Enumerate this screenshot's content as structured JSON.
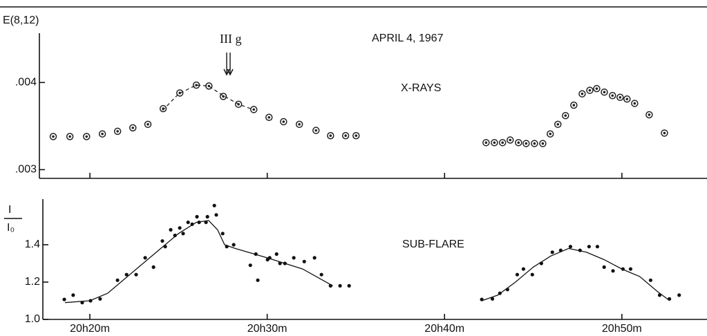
{
  "chart_data": [
    {
      "type": "scatter",
      "ylabel": "E(8,12)",
      "title": "APRIL 4, 1967",
      "label": "X-RAYS",
      "marker_note": "III g",
      "xlim": [
        17.15,
        54.8
      ],
      "ylim": [
        0.0029,
        0.00455
      ],
      "yticks": [
        {
          "value": 0.004,
          "label": ".004"
        },
        {
          "value": 0.003,
          "label": ".003"
        }
      ],
      "series": [
        {
          "marker": "ring",
          "color": "#222",
          "x": [
            17.93,
            18.87,
            19.81,
            20.7,
            21.56,
            22.42,
            23.27,
            24.13,
            25.07,
            26.0,
            26.71,
            27.52,
            28.38,
            29.24,
            30.1,
            30.92,
            31.81,
            32.75,
            33.57,
            34.42,
            35.01,
            42.34,
            42.81,
            43.27,
            43.7,
            44.17,
            44.6,
            45.07,
            45.54,
            45.96,
            46.39,
            46.82,
            47.29,
            47.76,
            48.19,
            48.58,
            49.01,
            49.47,
            49.9,
            50.29,
            50.72,
            51.54,
            52.4
          ],
          "values": [
            0.00338,
            0.00338,
            0.00338,
            0.00341,
            0.00344,
            0.00348,
            0.00352,
            0.0037,
            0.00388,
            0.00397,
            0.00396,
            0.00384,
            0.00375,
            0.00369,
            0.0036,
            0.00355,
            0.00352,
            0.00345,
            0.00339,
            0.00339,
            0.00339,
            0.00331,
            0.00331,
            0.00331,
            0.00334,
            0.00331,
            0.0033,
            0.0033,
            0.0033,
            0.00341,
            0.00352,
            0.00362,
            0.00374,
            0.00387,
            0.00391,
            0.00393,
            0.00389,
            0.00385,
            0.00383,
            0.00381,
            0.00376,
            0.00363,
            0.00342
          ]
        },
        {
          "type": "line",
          "style": "dashed",
          "color": "#222",
          "x": [
            24.1,
            25.0,
            26.0,
            26.7,
            27.5,
            28.4,
            29.2
          ],
          "values": [
            0.00368,
            0.00387,
            0.00397,
            0.00396,
            0.00385,
            0.00375,
            0.00369
          ]
        }
      ]
    },
    {
      "type": "scatter",
      "ylabel": "I",
      "ylabel_sub": "I₀",
      "label": "SUB-FLARE",
      "xlim": [
        17.35,
        54.8
      ],
      "ylim": [
        1.0,
        1.637
      ],
      "xticks": [
        {
          "value": 20,
          "label": "20h20m"
        },
        {
          "value": 30,
          "label": "20h30m"
        },
        {
          "value": 40,
          "label": "20h40m"
        },
        {
          "value": 50,
          "label": "20h50m"
        }
      ],
      "yticks": [
        {
          "value": 1.0,
          "label": "1.0"
        },
        1.2,
        1.4
      ],
      "series": [
        {
          "marker": "dot",
          "color": "#111",
          "x": [
            18.56,
            19.06,
            19.57,
            20.04,
            20.58,
            21.56,
            22.07,
            22.61,
            23.12,
            23.59,
            24.09,
            24.25,
            24.56,
            24.8,
            25.07,
            25.26,
            25.54,
            25.77,
            26.04,
            26.16,
            26.55,
            26.63,
            27.02,
            27.13,
            27.49,
            27.72,
            28.11,
            29.05,
            29.36,
            29.47,
            30.02,
            30.14,
            30.53,
            30.72,
            31.0,
            31.5,
            32.09,
            32.67,
            33.06,
            33.57,
            34.11,
            34.62,
            42.1,
            42.7,
            43.12,
            43.55,
            44.1,
            44.45,
            44.95,
            45.46,
            46.08,
            46.55,
            47.1,
            47.64,
            48.15,
            48.62,
            49.0,
            49.5,
            50.06,
            50.49,
            51.62,
            52.13,
            52.68,
            53.23
          ],
          "values": [
            1.107,
            1.13,
            1.09,
            1.1,
            1.11,
            1.21,
            1.24,
            1.24,
            1.33,
            1.28,
            1.42,
            1.39,
            1.48,
            1.45,
            1.49,
            1.46,
            1.52,
            1.51,
            1.55,
            1.52,
            1.52,
            1.55,
            1.61,
            1.56,
            1.46,
            1.39,
            1.4,
            1.29,
            1.35,
            1.21,
            1.32,
            1.33,
            1.35,
            1.3,
            1.3,
            1.33,
            1.31,
            1.33,
            1.24,
            1.18,
            1.18,
            1.18,
            1.107,
            1.11,
            1.14,
            1.16,
            1.24,
            1.27,
            1.24,
            1.3,
            1.36,
            1.37,
            1.39,
            1.37,
            1.39,
            1.39,
            1.28,
            1.26,
            1.27,
            1.27,
            1.21,
            1.13,
            1.11,
            1.13
          ]
        },
        {
          "type": "line",
          "style": "solid",
          "color": "#111",
          "x": [
            18.6,
            20.0,
            21.0,
            22.0,
            23.0,
            24.0,
            25.0,
            26.0,
            26.7,
            27.2,
            27.6,
            28.2,
            30.0,
            32.0,
            33.7,
            null,
            42.1,
            43.0,
            44.0,
            45.0,
            46.0,
            47.0,
            48.0,
            49.0,
            50.0,
            51.0,
            52.0,
            52.7
          ],
          "values": [
            1.09,
            1.1,
            1.14,
            1.22,
            1.3,
            1.38,
            1.46,
            1.52,
            1.53,
            1.48,
            1.4,
            1.38,
            1.33,
            1.27,
            1.18,
            null,
            1.1,
            1.13,
            1.2,
            1.28,
            1.34,
            1.38,
            1.36,
            1.32,
            1.27,
            1.23,
            1.15,
            1.1
          ]
        }
      ]
    }
  ]
}
